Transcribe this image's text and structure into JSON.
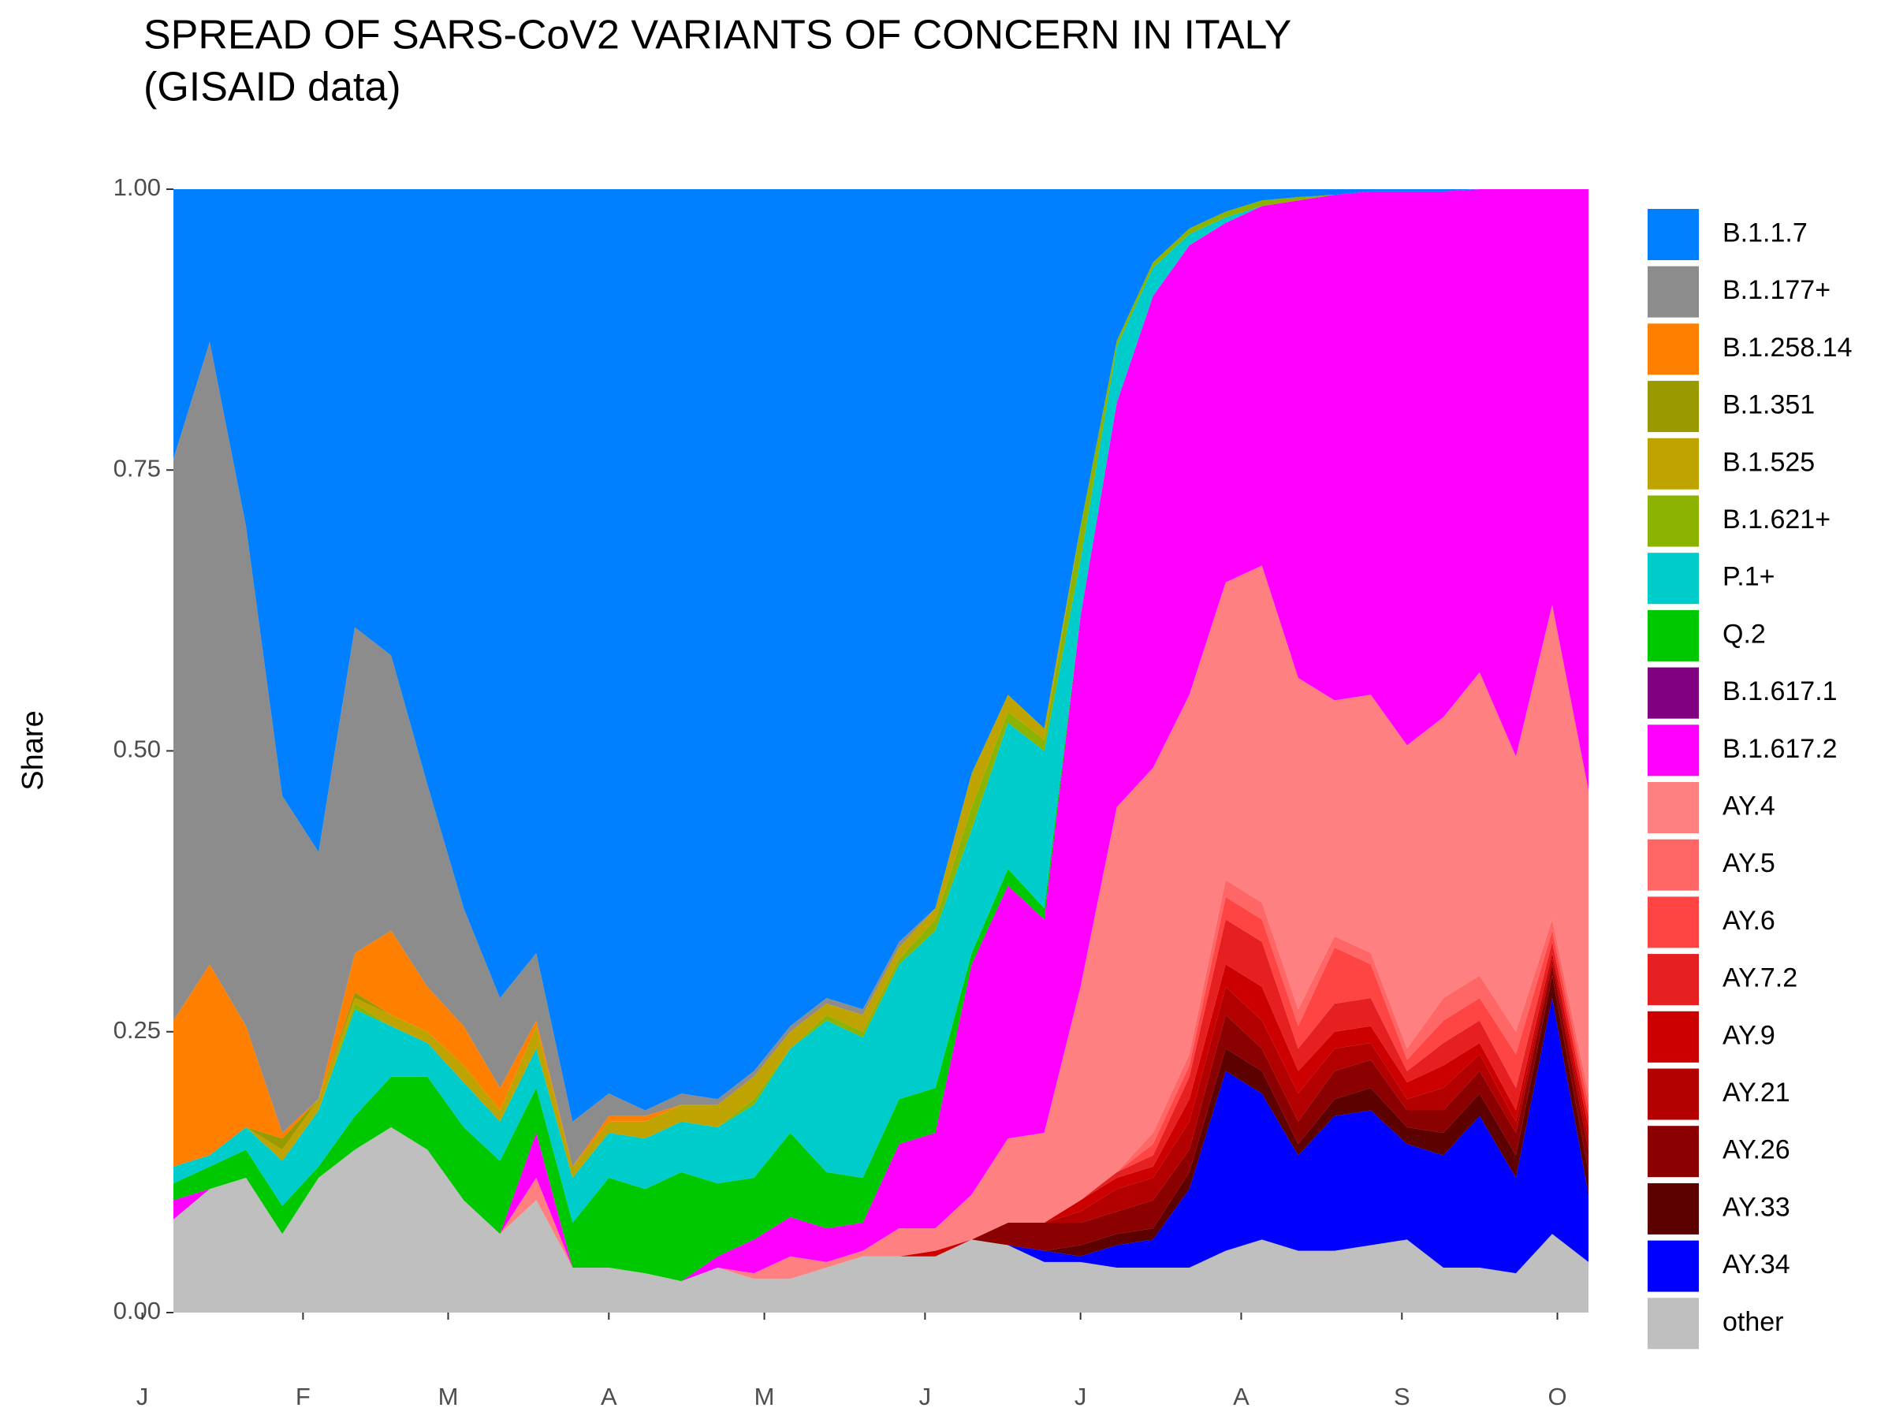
{
  "chart_data": {
    "type": "stacked_area",
    "title": "SPREAD OF SARS-CoV2 VARIANTS OF CONCERN IN ITALY",
    "subtitle": "(GISAID data)",
    "y_label": "Share",
    "x": [
      7,
      14,
      21,
      28,
      35,
      42,
      49,
      56,
      63,
      70,
      77,
      84,
      91,
      98,
      105,
      112,
      119,
      126,
      133,
      140,
      147,
      154,
      161,
      168,
      175,
      182,
      189,
      196,
      203,
      210,
      217,
      224,
      231,
      238,
      245,
      252,
      259,
      266,
      273,
      280
    ],
    "xlim": [
      7,
      280
    ],
    "xticks": [
      {
        "value": 1,
        "label": "J"
      },
      {
        "value": 32,
        "label": "F"
      },
      {
        "value": 60,
        "label": "M"
      },
      {
        "value": 91,
        "label": "A"
      },
      {
        "value": 121,
        "label": "M"
      },
      {
        "value": 152,
        "label": "J"
      },
      {
        "value": 182,
        "label": "J"
      },
      {
        "value": 213,
        "label": "A"
      },
      {
        "value": 244,
        "label": "S"
      },
      {
        "value": 274,
        "label": "O"
      }
    ],
    "ylim": [
      0,
      1
    ],
    "yticks": [
      {
        "value": 0,
        "label": "0.00"
      },
      {
        "value": 0.25,
        "label": "0.25"
      },
      {
        "value": 0.5,
        "label": "0.50"
      },
      {
        "value": 0.75,
        "label": "0.75"
      },
      {
        "value": 1,
        "label": "1.00"
      }
    ],
    "legend": "right",
    "series": [
      {
        "name": "B.1.1.7",
        "color": "#0080ff",
        "values": [
          0.24,
          0.136,
          0.3,
          0.54,
          0.59,
          0.39,
          0.415,
          0.53,
          0.64,
          0.72,
          0.68,
          0.83,
          0.805,
          0.82,
          0.805,
          0.81,
          0.785,
          0.745,
          0.72,
          0.73,
          0.67,
          0.64,
          0.52,
          0.45,
          0.48,
          0.3,
          0.135,
          0.065,
          0.035,
          0.02,
          0.01,
          0.007,
          0.005,
          0.002,
          0.002,
          0.002,
          0,
          0,
          0,
          0
        ]
      },
      {
        "name": "B.1.177+",
        "color": "#8c8c8c",
        "values": [
          0.5,
          0.554,
          0.445,
          0.3,
          0.22,
          0.29,
          0.245,
          0.18,
          0.105,
          0.08,
          0.06,
          0.04,
          0.02,
          0.005,
          0.01,
          0.005,
          0.005,
          0.005,
          0.005,
          0.005,
          0.005,
          0,
          0,
          0,
          0,
          0,
          0,
          0,
          0,
          0,
          0,
          0,
          0,
          0,
          0,
          0,
          0,
          0,
          0,
          0
        ]
      },
      {
        "name": "B.1.258.14",
        "color": "#ff8000",
        "values": [
          0.13,
          0.17,
          0.09,
          0.005,
          0,
          0.035,
          0.075,
          0.04,
          0.035,
          0.02,
          0.005,
          0,
          0.005,
          0.005,
          0,
          0,
          0,
          0,
          0,
          0,
          0,
          0,
          0,
          0,
          0,
          0,
          0,
          0,
          0,
          0,
          0,
          0,
          0,
          0,
          0,
          0,
          0,
          0,
          0,
          0
        ]
      },
      {
        "name": "B.1.351",
        "color": "#999900",
        "values": [
          0,
          0,
          0,
          0.01,
          0,
          0.005,
          0,
          0,
          0,
          0,
          0,
          0,
          0,
          0,
          0,
          0,
          0,
          0,
          0,
          0,
          0,
          0,
          0,
          0,
          0,
          0,
          0,
          0,
          0,
          0,
          0,
          0,
          0,
          0,
          0,
          0,
          0,
          0,
          0,
          0
        ]
      },
      {
        "name": "B.1.525",
        "color": "#bfa300",
        "values": [
          0,
          0,
          0,
          0.01,
          0.01,
          0.005,
          0.01,
          0.01,
          0.015,
          0.01,
          0.02,
          0.01,
          0.01,
          0.015,
          0.015,
          0.02,
          0.02,
          0.015,
          0.01,
          0.015,
          0.01,
          0.01,
          0.03,
          0.015,
          0.01,
          0,
          0,
          0,
          0,
          0,
          0,
          0,
          0,
          0,
          0,
          0,
          0,
          0,
          0,
          0
        ]
      },
      {
        "name": "B.1.621+",
        "color": "#8cb300",
        "values": [
          0,
          0,
          0,
          0,
          0,
          0.005,
          0,
          0,
          0,
          0,
          0,
          0,
          0,
          0,
          0,
          0,
          0.005,
          0,
          0.005,
          0.005,
          0.005,
          0.01,
          0.02,
          0.01,
          0.01,
          0.03,
          0.005,
          0.005,
          0.005,
          0.005,
          0.005,
          0.003,
          0,
          0,
          0,
          0,
          0,
          0,
          0,
          0
        ]
      },
      {
        "name": "P.1+",
        "color": "#00cccc",
        "values": [
          0.015,
          0.01,
          0.02,
          0.04,
          0.05,
          0.095,
          0.045,
          0.03,
          0.04,
          0.035,
          0.035,
          0.04,
          0.04,
          0.045,
          0.045,
          0.05,
          0.065,
          0.075,
          0.135,
          0.125,
          0.12,
          0.14,
          0.11,
          0.13,
          0.14,
          0.05,
          0.05,
          0.025,
          0.01,
          0.005,
          0,
          0,
          0,
          0,
          0,
          0,
          0,
          0,
          0,
          0
        ]
      },
      {
        "name": "Q.2",
        "color": "#00c800",
        "values": [
          0.015,
          0.02,
          0.025,
          0.025,
          0.01,
          0.03,
          0.045,
          0.065,
          0.065,
          0.065,
          0.04,
          0.04,
          0.08,
          0.075,
          0.097,
          0.065,
          0.055,
          0.075,
          0.05,
          0.04,
          0.04,
          0.04,
          0.01,
          0.015,
          0.01,
          0,
          0,
          0,
          0,
          0,
          0,
          0,
          0,
          0,
          0,
          0,
          0,
          0,
          0,
          0
        ]
      },
      {
        "name": "B.1.617.1",
        "color": "#800080",
        "values": [
          0,
          0,
          0,
          0,
          0,
          0,
          0,
          0,
          0,
          0,
          0,
          0,
          0,
          0,
          0,
          0,
          0,
          0,
          0,
          0,
          0,
          0,
          0,
          0,
          0,
          0,
          0,
          0,
          0,
          0,
          0,
          0,
          0,
          0,
          0,
          0,
          0,
          0,
          0,
          0
        ]
      },
      {
        "name": "B.1.617.2",
        "color": "#ff00ff",
        "values": [
          0.017,
          0,
          0,
          0,
          0,
          0,
          0,
          0,
          0,
          0,
          0.04,
          0,
          0,
          0,
          0,
          0.01,
          0.03,
          0.035,
          0.03,
          0.025,
          0.075,
          0.085,
          0.205,
          0.225,
          0.19,
          0.33,
          0.36,
          0.42,
          0.4,
          0.32,
          0.32,
          0.425,
          0.45,
          0.448,
          0.493,
          0.468,
          0.43,
          0.505,
          0.37,
          0.535
        ]
      },
      {
        "name": "AY.4",
        "color": "#ff8080",
        "values": [
          0,
          0,
          0,
          0,
          0,
          0,
          0,
          0,
          0,
          0,
          0.02,
          0,
          0,
          0,
          0,
          0,
          0.005,
          0.02,
          0.005,
          0.005,
          0.025,
          0.02,
          0.04,
          0.075,
          0.08,
          0.19,
          0.325,
          0.325,
          0.32,
          0.265,
          0.3,
          0.295,
          0.21,
          0.23,
          0.27,
          0.25,
          0.27,
          0.245,
          0.28,
          0.27
        ]
      },
      {
        "name": "AY.5",
        "color": "#ff6666",
        "values": [
          0,
          0,
          0,
          0,
          0,
          0,
          0,
          0,
          0,
          0,
          0,
          0,
          0,
          0,
          0,
          0,
          0,
          0,
          0,
          0,
          0,
          0,
          0,
          0,
          0,
          0,
          0,
          0.01,
          0.01,
          0.015,
          0.015,
          0.015,
          0.01,
          0.01,
          0.01,
          0.02,
          0.02,
          0.02,
          0.01,
          0.01
        ]
      },
      {
        "name": "AY.6",
        "color": "#ff4444",
        "values": [
          0,
          0,
          0,
          0,
          0,
          0,
          0,
          0,
          0,
          0,
          0,
          0,
          0,
          0,
          0,
          0,
          0,
          0,
          0,
          0,
          0,
          0,
          0,
          0,
          0,
          0,
          0,
          0.01,
          0.01,
          0.02,
          0.02,
          0.02,
          0.05,
          0.03,
          0.01,
          0.02,
          0.02,
          0.03,
          0.01,
          0.01
        ]
      },
      {
        "name": "AY.7.2",
        "color": "#e62020",
        "values": [
          0,
          0,
          0,
          0,
          0,
          0,
          0,
          0,
          0,
          0,
          0,
          0,
          0,
          0,
          0,
          0,
          0,
          0,
          0,
          0,
          0,
          0,
          0,
          0,
          0,
          0,
          0.005,
          0.01,
          0.02,
          0.04,
          0.04,
          0.02,
          0.025,
          0.025,
          0.01,
          0.02,
          0.02,
          0.02,
          0.01,
          0.01
        ]
      },
      {
        "name": "AY.9",
        "color": "#cc0000",
        "values": [
          0,
          0,
          0,
          0,
          0,
          0,
          0,
          0,
          0,
          0,
          0,
          0,
          0,
          0,
          0,
          0,
          0,
          0,
          0,
          0,
          0,
          0.005,
          0,
          0,
          0,
          0.01,
          0.01,
          0.01,
          0.02,
          0.02,
          0.03,
          0.02,
          0.015,
          0.015,
          0.015,
          0.02,
          0.01,
          0.01,
          0.005,
          0.01
        ]
      },
      {
        "name": "AY.21",
        "color": "#b30000",
        "values": [
          0,
          0,
          0,
          0,
          0,
          0,
          0,
          0,
          0,
          0,
          0,
          0,
          0,
          0,
          0,
          0,
          0,
          0,
          0,
          0,
          0,
          0,
          0,
          0,
          0,
          0.01,
          0.02,
          0.02,
          0.025,
          0.025,
          0.025,
          0.025,
          0.02,
          0.015,
          0.01,
          0.02,
          0.015,
          0.01,
          0.005,
          0.01
        ]
      },
      {
        "name": "AY.26",
        "color": "#8b0000",
        "values": [
          0,
          0,
          0,
          0,
          0,
          0,
          0,
          0,
          0,
          0,
          0,
          0,
          0,
          0,
          0,
          0,
          0,
          0,
          0,
          0,
          0,
          0,
          0,
          0.02,
          0.025,
          0.02,
          0.02,
          0.025,
          0.02,
          0.03,
          0.02,
          0.02,
          0.025,
          0.025,
          0.015,
          0.02,
          0.02,
          0.02,
          0.01,
          0.02
        ]
      },
      {
        "name": "AY.33",
        "color": "#5c0000",
        "values": [
          0,
          0,
          0,
          0,
          0,
          0,
          0,
          0,
          0,
          0,
          0,
          0,
          0,
          0,
          0,
          0,
          0,
          0,
          0,
          0,
          0,
          0,
          0,
          0,
          0,
          0.01,
          0.01,
          0.01,
          0.015,
          0.02,
          0.02,
          0.01,
          0.015,
          0.02,
          0.015,
          0.02,
          0.02,
          0.02,
          0.02,
          0.02
        ]
      },
      {
        "name": "AY.34",
        "color": "#0000ff",
        "values": [
          0,
          0,
          0,
          0,
          0,
          0,
          0,
          0,
          0,
          0,
          0,
          0,
          0,
          0,
          0,
          0,
          0,
          0,
          0,
          0,
          0,
          0,
          0,
          0,
          0.01,
          0.005,
          0.02,
          0.025,
          0.07,
          0.16,
          0.13,
          0.085,
          0.12,
          0.12,
          0.085,
          0.1,
          0.135,
          0.085,
          0.21,
          0.06
        ]
      },
      {
        "name": "other",
        "color": "#bfbfbf",
        "values": [
          0.083,
          0.11,
          0.12,
          0.07,
          0.12,
          0.145,
          0.165,
          0.145,
          0.1,
          0.07,
          0.1,
          0.04,
          0.04,
          0.035,
          0.028,
          0.04,
          0.03,
          0.03,
          0.04,
          0.05,
          0.05,
          0.05,
          0.065,
          0.06,
          0.045,
          0.045,
          0.04,
          0.04,
          0.04,
          0.055,
          0.065,
          0.055,
          0.055,
          0.06,
          0.065,
          0.04,
          0.04,
          0.035,
          0.07,
          0.045
        ]
      }
    ]
  }
}
